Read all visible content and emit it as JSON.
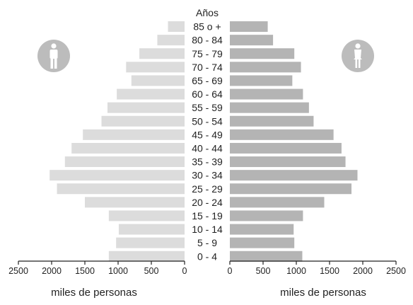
{
  "chart_data": {
    "type": "population-pyramid",
    "header": "Años",
    "age_groups": [
      "85 o +",
      "80 - 84",
      "75 - 79",
      "70 - 74",
      "65 - 69",
      "60 - 64",
      "55 - 59",
      "50 - 54",
      "45 - 49",
      "40 - 44",
      "35 - 39",
      "30 - 34",
      "25 - 29",
      "20 - 24",
      "15 - 19",
      "10 - 14",
      "5 - 9",
      "0 - 4"
    ],
    "series": [
      {
        "side": "left",
        "icon": "male-icon",
        "color": "#dcdcdc",
        "values": [
          250,
          410,
          680,
          880,
          800,
          1020,
          1160,
          1250,
          1530,
          1700,
          1800,
          2030,
          1920,
          1500,
          1140,
          990,
          1030,
          1140
        ]
      },
      {
        "side": "right",
        "icon": "female-icon",
        "color": "#b4b4b4",
        "values": [
          570,
          650,
          970,
          1070,
          940,
          1100,
          1190,
          1260,
          1560,
          1680,
          1740,
          1920,
          1830,
          1420,
          1100,
          960,
          970,
          1090
        ]
      }
    ],
    "x_ticks": [
      2500,
      2000,
      1500,
      1000,
      500,
      0
    ],
    "x_ticks_right": [
      0,
      500,
      1000,
      1500,
      2000,
      2500
    ],
    "xlim": [
      0,
      2500
    ],
    "xlabel": "miles de personas",
    "icon_color": "#bcbcbc"
  }
}
